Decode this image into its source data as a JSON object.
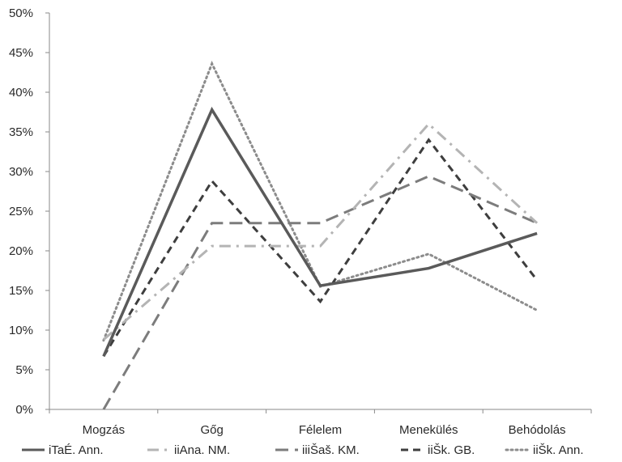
{
  "chart_data": {
    "type": "line",
    "title": "",
    "xlabel": "",
    "ylabel": "",
    "categories": [
      "Mogzás",
      "Gőg",
      "Félelem",
      "Menekülés",
      "Behódolás"
    ],
    "ylim": [
      0,
      50
    ],
    "yticks": [
      0,
      5,
      10,
      15,
      20,
      25,
      30,
      35,
      40,
      45,
      50
    ],
    "ytick_labels": [
      "0%",
      "5%",
      "10%",
      "15%",
      "20%",
      "25%",
      "30%",
      "35%",
      "40%",
      "45%",
      "50%"
    ],
    "grid": false,
    "legend_position": "bottom",
    "series": [
      {
        "name": "iTaÉ. Ann.",
        "values": [
          6.7,
          37.8,
          15.6,
          17.8,
          22.2
        ],
        "color": "#5a5a5a",
        "style": "solid"
      },
      {
        "name": "iiAna. NM.",
        "values": [
          8.8,
          20.6,
          20.6,
          36.0,
          23.5
        ],
        "color": "#b4b4b4",
        "style": "dashdot"
      },
      {
        "name": "iiiŠaš. KM.",
        "values": [
          0.0,
          23.5,
          23.5,
          29.4,
          23.5
        ],
        "color": "#7c7c7c",
        "style": "longdash"
      },
      {
        "name": "iiŠk. GB.",
        "values": [
          6.7,
          28.8,
          13.6,
          34.0,
          16.3
        ],
        "color": "#3e3e3e",
        "style": "dash"
      },
      {
        "name": "iiŠk. Ann.",
        "values": [
          8.7,
          43.6,
          15.5,
          19.6,
          12.5
        ],
        "color": "#8c8c8c",
        "style": "dot"
      }
    ]
  }
}
